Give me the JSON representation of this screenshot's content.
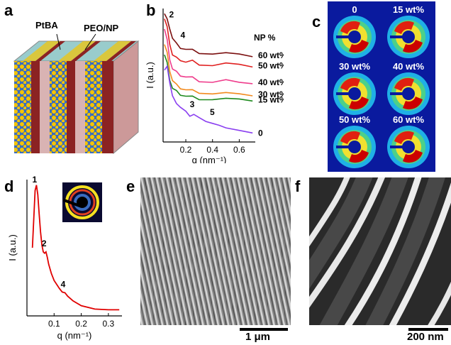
{
  "panels": {
    "a": {
      "letter": "a",
      "labels": {
        "ptba": "PtBA",
        "peo_np": "PEO/NP"
      },
      "colors": {
        "ptba": "#8b2323",
        "peo": "#d9b3b3",
        "np": "#f5c400",
        "front": "#5b8fd6"
      }
    },
    "b": {
      "letter": "b",
      "ylabel": "I (a.u.)",
      "xlabel": "q (nm⁻¹)",
      "legend_title": "NP %",
      "peak_labels": [
        "2",
        "4",
        "3",
        "5"
      ]
    },
    "c": {
      "letter": "c",
      "pattern_labels": [
        "0",
        "15 wt%",
        "30 wt%",
        "40 wt%",
        "50 wt%",
        "60 wt%"
      ],
      "background": "#0a1a9e"
    },
    "d": {
      "letter": "d",
      "ylabel": "I (a.u.)",
      "xlabel": "q (nm⁻¹)",
      "peak_labels": [
        "1",
        "2",
        "4"
      ]
    },
    "e": {
      "letter": "e",
      "scale_bar": "1 μm"
    },
    "f": {
      "letter": "f",
      "scale_bar": "200 nm"
    }
  },
  "chart_data": [
    {
      "type": "line",
      "panel": "b",
      "xlabel": "q (nm⁻¹)",
      "ylabel": "I (a.u.)",
      "xlim": [
        0.03,
        0.72
      ],
      "xticks": [
        0.2,
        0.4,
        0.6
      ],
      "legend_title": "NP %",
      "series": [
        {
          "name": "60 wt%",
          "color": "#7b1010",
          "x": [
            0.04,
            0.06,
            0.08,
            0.1,
            0.13,
            0.16,
            0.2,
            0.25,
            0.3,
            0.4,
            0.5,
            0.6,
            0.7
          ],
          "y": [
            10.0,
            9.6,
            8.8,
            8.1,
            7.6,
            7.35,
            7.25,
            7.15,
            7.0,
            6.9,
            6.85,
            6.8,
            6.75
          ]
        },
        {
          "name": "50 wt%",
          "color": "#e02020",
          "x": [
            0.04,
            0.06,
            0.08,
            0.1,
            0.13,
            0.16,
            0.2,
            0.25,
            0.3,
            0.4,
            0.5,
            0.6,
            0.7
          ],
          "y": [
            9.6,
            9.0,
            7.6,
            6.8,
            6.5,
            6.4,
            6.25,
            6.3,
            6.1,
            6.0,
            6.05,
            6.0,
            5.95
          ]
        },
        {
          "name": "40 wt%",
          "color": "#ef3d8c",
          "x": [
            0.04,
            0.06,
            0.08,
            0.1,
            0.13,
            0.16,
            0.2,
            0.25,
            0.3,
            0.4,
            0.5,
            0.6,
            0.7
          ],
          "y": [
            8.8,
            8.0,
            6.4,
            5.7,
            5.4,
            5.2,
            5.1,
            5.0,
            4.8,
            4.7,
            4.75,
            4.6,
            4.65
          ]
        },
        {
          "name": "30 wt%",
          "color": "#f28a1e",
          "x": [
            0.04,
            0.06,
            0.08,
            0.1,
            0.13,
            0.16,
            0.2,
            0.25,
            0.3,
            0.4,
            0.5,
            0.6,
            0.7
          ],
          "y": [
            7.6,
            7.0,
            5.5,
            4.8,
            4.4,
            4.2,
            4.1,
            4.0,
            3.9,
            3.8,
            3.75,
            3.7,
            3.7
          ]
        },
        {
          "name": "15 wt%",
          "color": "#1e8a1e",
          "x": [
            0.04,
            0.06,
            0.08,
            0.1,
            0.13,
            0.16,
            0.2,
            0.25,
            0.3,
            0.4,
            0.5,
            0.6,
            0.7
          ],
          "y": [
            6.8,
            6.2,
            4.8,
            4.2,
            3.9,
            3.7,
            3.6,
            3.5,
            3.4,
            3.35,
            3.3,
            3.3,
            3.3
          ]
        },
        {
          "name": "0",
          "color": "#8a3ff0",
          "x": [
            0.04,
            0.06,
            0.08,
            0.1,
            0.13,
            0.16,
            0.2,
            0.23,
            0.26,
            0.3,
            0.35,
            0.4,
            0.45,
            0.5,
            0.6,
            0.7
          ],
          "y": [
            5.6,
            5.9,
            4.6,
            3.6,
            3.0,
            2.7,
            2.4,
            2.0,
            2.15,
            1.9,
            1.6,
            1.45,
            1.3,
            1.1,
            0.9,
            0.7
          ]
        }
      ]
    },
    {
      "type": "line",
      "panel": "d",
      "xlabel": "q (nm⁻¹)",
      "ylabel": "I (a.u.)",
      "xlim": [
        0,
        0.35
      ],
      "xticks": [
        0.1,
        0.2,
        0.3
      ],
      "series": [
        {
          "color": "#e00000",
          "x": [
            0.02,
            0.03,
            0.035,
            0.04,
            0.045,
            0.05,
            0.055,
            0.06,
            0.065,
            0.07,
            0.075,
            0.08,
            0.09,
            0.1,
            0.12,
            0.13,
            0.14,
            0.15,
            0.17,
            0.2,
            0.25,
            0.3,
            0.34
          ],
          "y": [
            5.0,
            9.2,
            9.6,
            8.9,
            7.5,
            6.2,
            5.2,
            4.7,
            4.6,
            4.7,
            4.3,
            3.8,
            3.1,
            2.6,
            2.0,
            1.75,
            1.7,
            1.45,
            1.1,
            0.75,
            0.5,
            0.45,
            0.45
          ]
        }
      ]
    }
  ]
}
